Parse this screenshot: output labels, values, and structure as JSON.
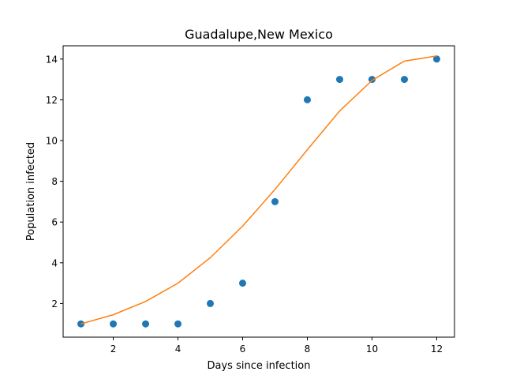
{
  "chart_data": {
    "type": "scatter",
    "title": "Guadalupe,New Mexico",
    "xlabel": "Days since infection",
    "ylabel": "Population infected",
    "xlim": [
      0.45,
      12.55
    ],
    "ylim": [
      0.35,
      14.65
    ],
    "xticks": [
      2,
      4,
      6,
      8,
      10,
      12
    ],
    "yticks": [
      2,
      4,
      6,
      8,
      10,
      12,
      14
    ],
    "grid": false,
    "series": [
      {
        "kind": "scatter",
        "color": "#1f77b4",
        "x": [
          1,
          2,
          3,
          4,
          5,
          6,
          7,
          8,
          9,
          10,
          11,
          12
        ],
        "y": [
          1,
          1,
          1,
          1,
          2,
          3,
          7,
          12,
          13,
          13,
          13,
          14
        ]
      },
      {
        "kind": "line",
        "color": "#ff7f0e",
        "x": [
          1,
          2,
          3,
          4,
          5,
          6,
          7,
          8,
          9,
          10,
          11,
          12
        ],
        "y": [
          1.0,
          1.45,
          2.1,
          3.0,
          4.25,
          5.8,
          7.6,
          9.55,
          11.45,
          12.95,
          13.9,
          14.15
        ]
      }
    ]
  }
}
